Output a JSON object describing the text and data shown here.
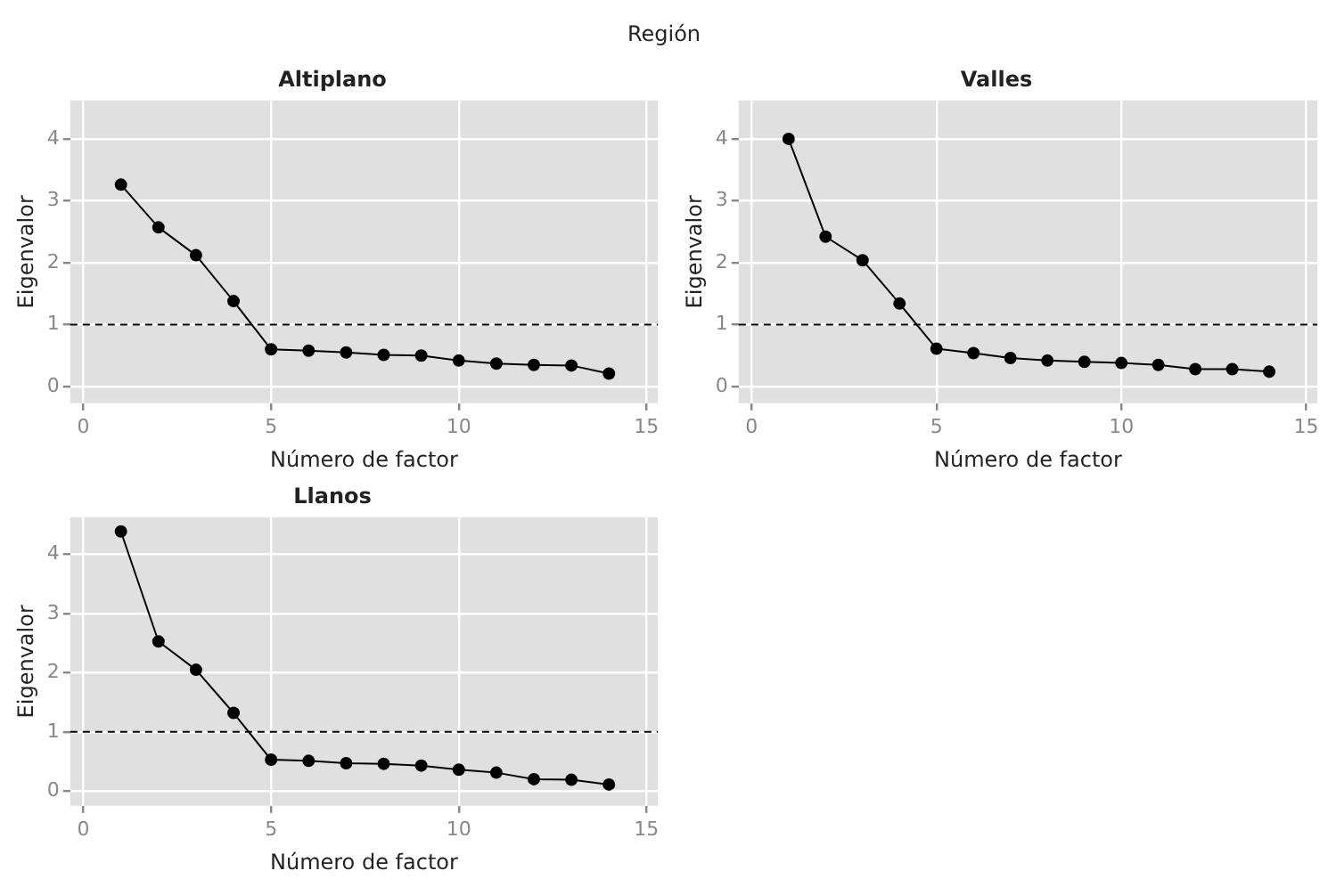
{
  "chart_data": [
    {
      "type": "line",
      "title": "Altiplano",
      "xlabel": "Número de factor",
      "ylabel": "Eigenvalor",
      "annotations": [
        "Región"
      ],
      "grid": true,
      "marker": "circle",
      "line_style": "solid",
      "color": "#000000",
      "x": [
        1,
        2,
        3,
        4,
        5,
        6,
        7,
        8,
        9,
        10,
        11,
        12,
        13,
        14
      ],
      "values": [
        3.26,
        2.57,
        2.12,
        1.38,
        0.6,
        0.58,
        0.55,
        0.51,
        0.5,
        0.42,
        0.37,
        0.35,
        0.34,
        0.21
      ],
      "xlim": [
        -0.35,
        15.3
      ],
      "ylim": [
        -0.27,
        4.62
      ],
      "xticks": [
        0,
        5,
        10,
        15
      ],
      "yticks": [
        0,
        1,
        2,
        3,
        4
      ],
      "ref_lines": [
        {
          "axis": "y",
          "value": 1,
          "color": "#000000",
          "line_style": "dashed"
        }
      ]
    },
    {
      "type": "line",
      "title": "Valles",
      "xlabel": "Número de factor",
      "ylabel": "Eigenvalor",
      "grid": true,
      "marker": "circle",
      "line_style": "solid",
      "color": "#000000",
      "x": [
        1,
        2,
        3,
        4,
        5,
        6,
        7,
        8,
        9,
        10,
        11,
        12,
        13,
        14
      ],
      "values": [
        4.0,
        2.42,
        2.04,
        1.34,
        0.61,
        0.54,
        0.46,
        0.42,
        0.4,
        0.38,
        0.35,
        0.28,
        0.28,
        0.24
      ],
      "xlim": [
        -0.35,
        15.3
      ],
      "ylim": [
        -0.27,
        4.62
      ],
      "xticks": [
        0,
        5,
        10,
        15
      ],
      "yticks": [
        0,
        1,
        2,
        3,
        4
      ],
      "ref_lines": [
        {
          "axis": "y",
          "value": 1,
          "color": "#000000",
          "line_style": "dashed"
        }
      ]
    },
    {
      "type": "line",
      "title": "Llanos",
      "xlabel": "Número de factor",
      "ylabel": "Eigenvalor",
      "grid": true,
      "marker": "circle",
      "line_style": "solid",
      "color": "#000000",
      "x": [
        1,
        2,
        3,
        4,
        5,
        6,
        7,
        8,
        9,
        10,
        11,
        12,
        13,
        14
      ],
      "values": [
        4.39,
        2.53,
        2.05,
        1.32,
        0.53,
        0.51,
        0.47,
        0.46,
        0.43,
        0.36,
        0.31,
        0.2,
        0.19,
        0.11
      ],
      "xlim": [
        -0.35,
        15.3
      ],
      "ylim": [
        -0.25,
        4.63
      ],
      "xticks": [
        0,
        5,
        10,
        15
      ],
      "yticks": [
        0,
        1,
        2,
        3,
        4
      ],
      "ref_lines": [
        {
          "axis": "y",
          "value": 1,
          "color": "#000000",
          "line_style": "dashed"
        }
      ]
    }
  ]
}
